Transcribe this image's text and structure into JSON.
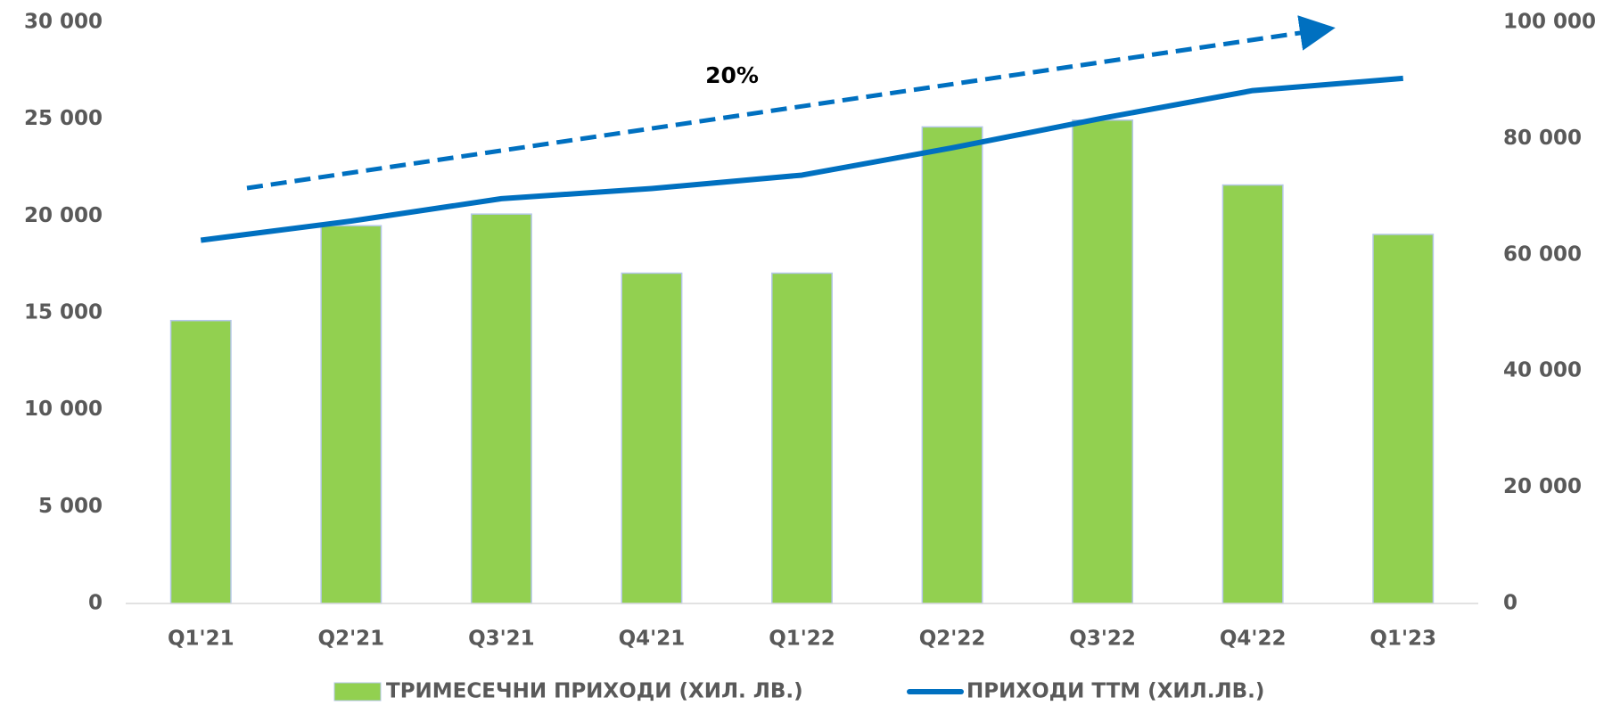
{
  "chart_data": {
    "type": "bar",
    "categories": [
      "Q1'21",
      "Q2'21",
      "Q3'21",
      "Q4'21",
      "Q1'22",
      "Q2'22",
      "Q3'22",
      "Q4'22",
      "Q1'23"
    ],
    "series": [
      {
        "name": "ТРИМЕСЕЧНИ ПРИХОДИ (ХИЛ. ЛВ.)",
        "color": "#92d050",
        "type": "bar",
        "values": [
          14600,
          19500,
          20100,
          17050,
          17050,
          24600,
          24950,
          21600,
          19050
        ]
      },
      {
        "name": "ПРИХОДИ TTM (ХИЛ.ЛВ.)",
        "color": "#0070c0",
        "type": "line",
        "axis": "y2",
        "values": [
          62500,
          65800,
          69650,
          71400,
          73700,
          78400,
          83500,
          88250,
          90350
        ]
      }
    ],
    "annotation": "20%",
    "ylim": [
      0,
      30000
    ],
    "yticks": [
      0,
      {
        "value": 5000,
        "label": "5 000"
      },
      {
        "value": 10000,
        "label": "10 000"
      },
      {
        "value": 15000,
        "label": "15 000"
      },
      {
        "value": 20000,
        "label": "20 000"
      },
      {
        "value": 25000,
        "label": "25 000"
      },
      {
        "value": 30000,
        "label": "30 000"
      }
    ],
    "y2lim": [
      0,
      100000
    ],
    "y2ticks": [
      0,
      {
        "value": 20000,
        "label": "20 000"
      },
      {
        "value": 40000,
        "label": "40 000"
      },
      {
        "value": 60000,
        "label": "60 000"
      },
      {
        "value": 80000,
        "label": "80 000"
      },
      {
        "value": 100000,
        "label": "100 000"
      }
    ],
    "legend": "bottom"
  }
}
